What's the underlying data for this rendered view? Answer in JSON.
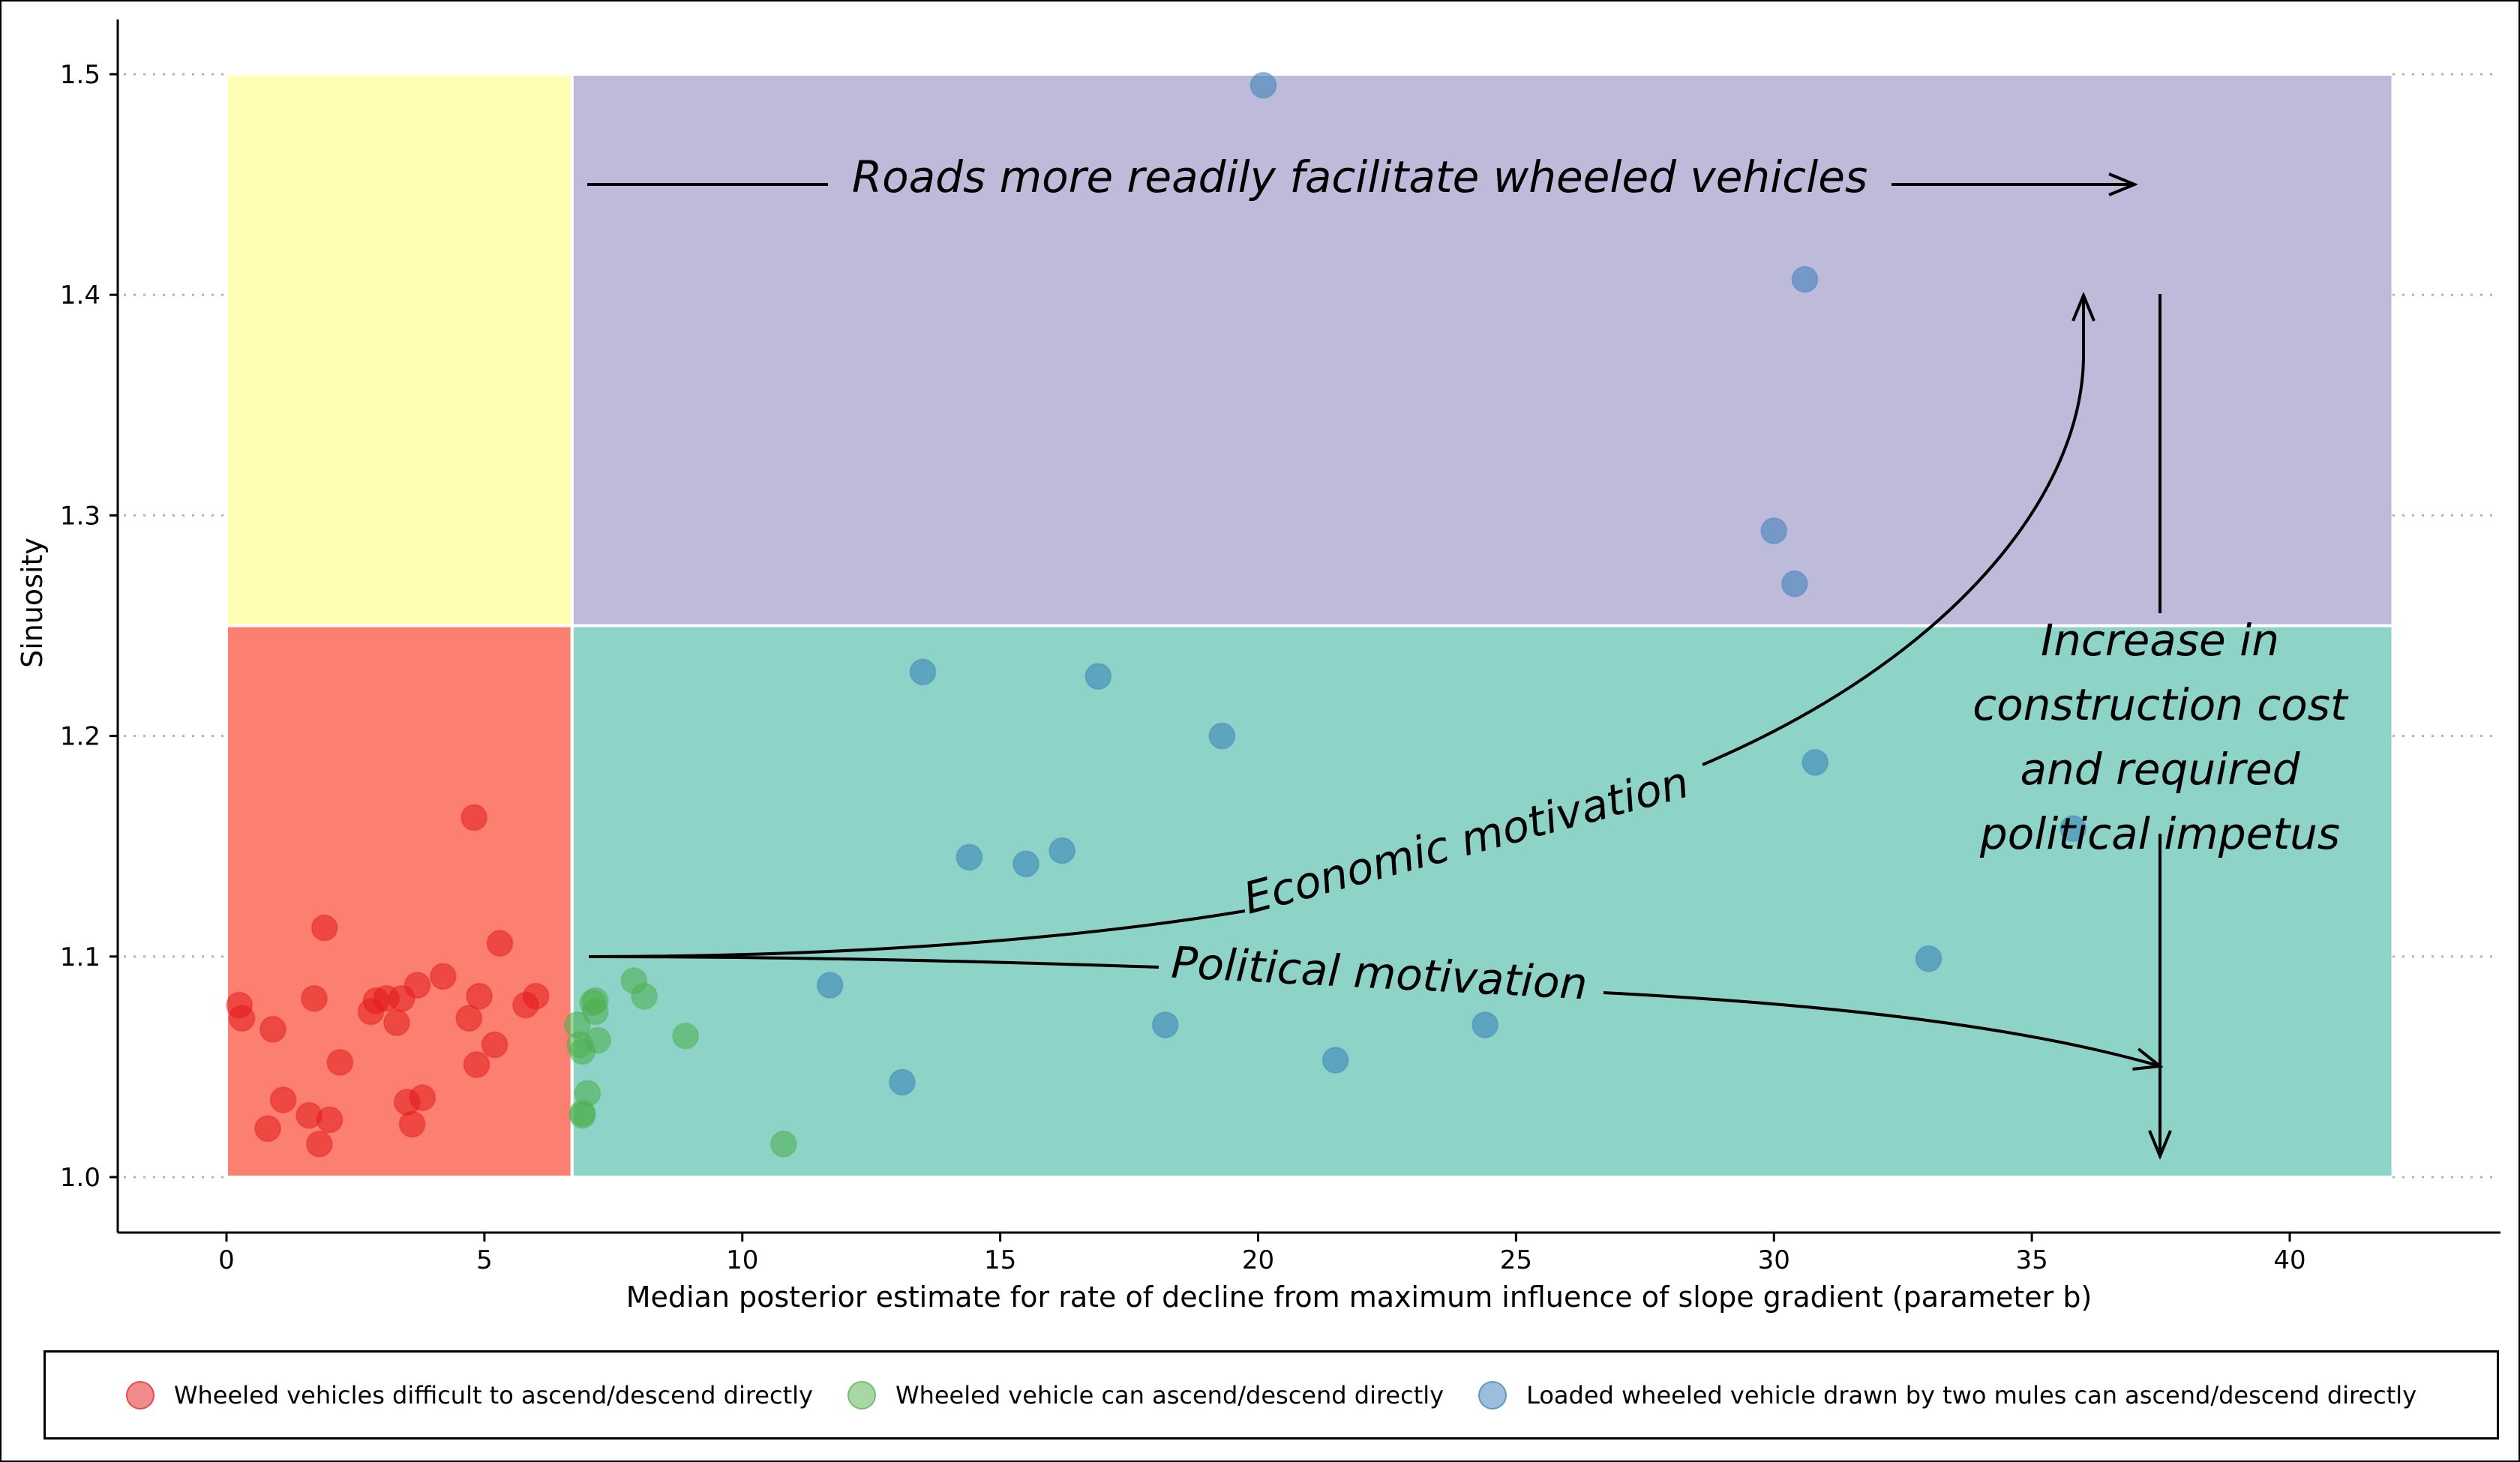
{
  "chart_data": {
    "type": "scatter",
    "title": "",
    "xlabel": "Median posterior estimate for rate of decline from maximum influence of slope gradient (parameter b)",
    "ylabel": "Sinuosity",
    "xlim": [
      -2.1,
      44.4
    ],
    "ylim": [
      0.976,
      1.524
    ],
    "xticks": [
      "0",
      "5",
      "10",
      "15",
      "20",
      "25",
      "30",
      "35",
      "40"
    ],
    "yticks": [
      "1.0",
      "1.1",
      "1.2",
      "1.3",
      "1.4",
      "1.5"
    ],
    "grid": "horizontal dotted gridlines at y ticks",
    "legend_position": "bottom",
    "regions": [
      {
        "name": "lower-left",
        "x": [
          0,
          6.7
        ],
        "y": [
          1.0,
          1.25
        ],
        "color": "#fb8072"
      },
      {
        "name": "upper-left",
        "x": [
          0,
          6.7
        ],
        "y": [
          1.25,
          1.5
        ],
        "color": "#ffffb3"
      },
      {
        "name": "lower-right",
        "x": [
          6.7,
          42
        ],
        "y": [
          1.0,
          1.25
        ],
        "color": "#8dd3c7"
      },
      {
        "name": "upper-right",
        "x": [
          6.7,
          42
        ],
        "y": [
          1.25,
          1.5
        ],
        "color": "#bebada"
      }
    ],
    "series": [
      {
        "name": "Wheeled vehicles difficult to ascend/descend directly",
        "color": "#e41a1c",
        "points": [
          [
            0.25,
            1.078
          ],
          [
            0.3,
            1.072
          ],
          [
            0.9,
            1.067
          ],
          [
            1.1,
            1.035
          ],
          [
            0.8,
            1.022
          ],
          [
            1.6,
            1.028
          ],
          [
            1.7,
            1.081
          ],
          [
            1.8,
            1.015
          ],
          [
            1.9,
            1.113
          ],
          [
            2.0,
            1.026
          ],
          [
            2.2,
            1.052
          ],
          [
            2.8,
            1.075
          ],
          [
            2.9,
            1.08
          ],
          [
            3.1,
            1.081
          ],
          [
            3.3,
            1.07
          ],
          [
            3.4,
            1.081
          ],
          [
            3.5,
            1.034
          ],
          [
            3.6,
            1.024
          ],
          [
            3.7,
            1.087
          ],
          [
            3.8,
            1.036
          ],
          [
            4.2,
            1.091
          ],
          [
            4.7,
            1.072
          ],
          [
            4.8,
            1.163
          ],
          [
            4.85,
            1.051
          ],
          [
            4.9,
            1.082
          ],
          [
            5.2,
            1.06
          ],
          [
            5.3,
            1.106
          ],
          [
            5.8,
            1.078
          ],
          [
            6.0,
            1.082
          ]
        ]
      },
      {
        "name": "Wheeled vehicle can ascend/descend directly",
        "color": "#4daf4a",
        "points": [
          [
            6.8,
            1.069
          ],
          [
            6.85,
            1.06
          ],
          [
            6.9,
            1.057
          ],
          [
            6.9,
            1.029
          ],
          [
            6.9,
            1.028
          ],
          [
            7.0,
            1.038
          ],
          [
            7.1,
            1.079
          ],
          [
            7.15,
            1.075
          ],
          [
            7.2,
            1.062
          ],
          [
            7.15,
            1.08
          ],
          [
            7.9,
            1.089
          ],
          [
            8.1,
            1.082
          ],
          [
            8.9,
            1.064
          ],
          [
            10.8,
            1.015
          ]
        ]
      },
      {
        "name": "Loaded wheeled vehicle drawn by two mules can ascend/descend directly",
        "color": "#377eb8",
        "points": [
          [
            20.1,
            1.495
          ],
          [
            30.6,
            1.407
          ],
          [
            30.0,
            1.293
          ],
          [
            30.4,
            1.269
          ],
          [
            30.8,
            1.188
          ],
          [
            13.5,
            1.229
          ],
          [
            16.9,
            1.227
          ],
          [
            19.3,
            1.2
          ],
          [
            14.4,
            1.145
          ],
          [
            15.5,
            1.142
          ],
          [
            16.2,
            1.148
          ],
          [
            11.7,
            1.087
          ],
          [
            13.1,
            1.043
          ],
          [
            18.2,
            1.069
          ],
          [
            21.5,
            1.053
          ],
          [
            24.4,
            1.069
          ],
          [
            33.0,
            1.099
          ],
          [
            35.8,
            1.158
          ]
        ]
      }
    ],
    "annotations": {
      "roads": "Roads more readily facilitate wheeled vehicles",
      "economic": "Economic motivation",
      "political": "Political motivation",
      "cost_line1": "Increase in",
      "cost_line2": "construction cost",
      "cost_line3": "and required",
      "cost_line4": "political impetus"
    }
  }
}
